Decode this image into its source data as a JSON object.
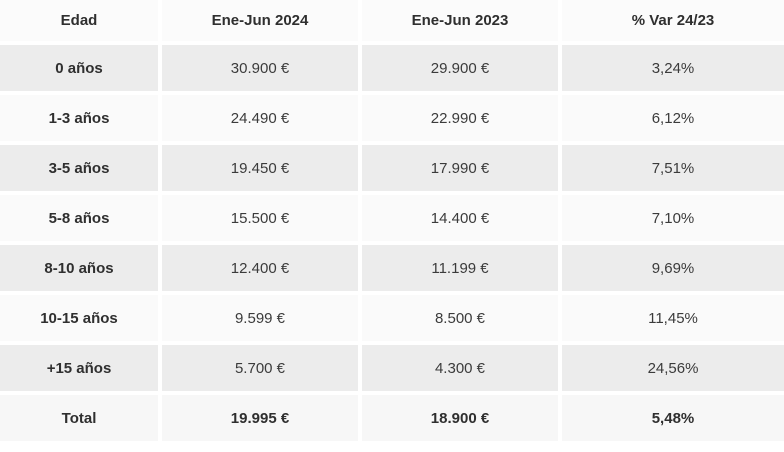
{
  "table": {
    "columns": {
      "age": "Edad",
      "period_2024": "Ene-Jun 2024",
      "period_2023": "Ene-Jun 2023",
      "variation": "% Var 24/23"
    },
    "rows": [
      {
        "age": "0 años",
        "v2024": "30.900 €",
        "v2023": "29.900 €",
        "var": "3,24%"
      },
      {
        "age": "1-3 años",
        "v2024": "24.490 €",
        "v2023": "22.990 €",
        "var": "6,12%"
      },
      {
        "age": "3-5 años",
        "v2024": "19.450 €",
        "v2023": "17.990 €",
        "var": "7,51%"
      },
      {
        "age": "5-8 años",
        "v2024": "15.500 €",
        "v2023": "14.400 €",
        "var": "7,10%"
      },
      {
        "age": "8-10 años",
        "v2024": "12.400 €",
        "v2023": "11.199 €",
        "var": "9,69%"
      },
      {
        "age": "10-15 años",
        "v2024": "9.599 €",
        "v2023": "8.500 €",
        "var": "11,45%"
      },
      {
        "age": "+15 años",
        "v2024": "5.700 €",
        "v2023": "4.300 €",
        "var": "24,56%"
      }
    ],
    "total": {
      "age": "Total",
      "v2024": "19.995 €",
      "v2023": "18.900 €",
      "var": "5,48%"
    }
  },
  "colors": {
    "row_gray": "#ececec",
    "row_light": "#fafafa",
    "header_bg": "#fbfbfb",
    "gap": "#ffffff",
    "text": "#3b3b3b",
    "text_bold": "#2f2f2f"
  },
  "chart_data": {
    "type": "table",
    "title": "",
    "columns": [
      "Edad",
      "Ene-Jun 2024",
      "Ene-Jun 2023",
      "% Var 24/23"
    ],
    "categories": [
      "0 años",
      "1-3 años",
      "3-5 años",
      "5-8 años",
      "8-10 años",
      "10-15 años",
      "+15 años",
      "Total"
    ],
    "series": [
      {
        "name": "Ene-Jun 2024 (EUR)",
        "values": [
          30900,
          24490,
          19450,
          15500,
          12400,
          9599,
          5700,
          19995
        ]
      },
      {
        "name": "Ene-Jun 2023 (EUR)",
        "values": [
          29900,
          22990,
          17990,
          14400,
          11199,
          8500,
          4300,
          18900
        ]
      },
      {
        "name": "% Var 24/23",
        "values": [
          3.24,
          6.12,
          7.51,
          7.1,
          9.69,
          11.45,
          24.56,
          5.48
        ]
      }
    ]
  }
}
